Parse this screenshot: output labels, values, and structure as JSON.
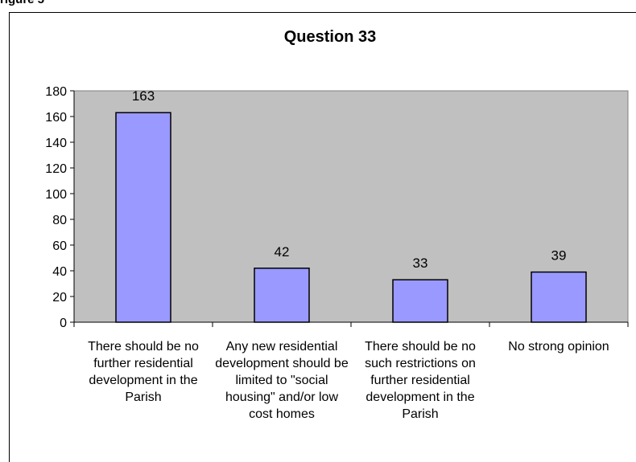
{
  "header_fragment": "rigure 5",
  "chart_data": {
    "type": "bar",
    "title": "Question 33",
    "xlabel": "",
    "ylabel": "",
    "ylim": [
      0,
      180
    ],
    "yticks": [
      0,
      20,
      40,
      60,
      80,
      100,
      120,
      140,
      160,
      180
    ],
    "grid": false,
    "legend": "none",
    "categories": [
      "There should be no further residential development in the Parish",
      "Any new residential development should be limited to \"social housing\" and/or low cost homes",
      "There should be no such restrictions on further residential development in the Parish",
      "No strong opinion"
    ],
    "values": [
      163,
      42,
      33,
      39
    ],
    "colors": {
      "plot_background": "#c0c0c0",
      "bar_fill": "#9999ff",
      "bar_stroke": "#000000"
    }
  }
}
